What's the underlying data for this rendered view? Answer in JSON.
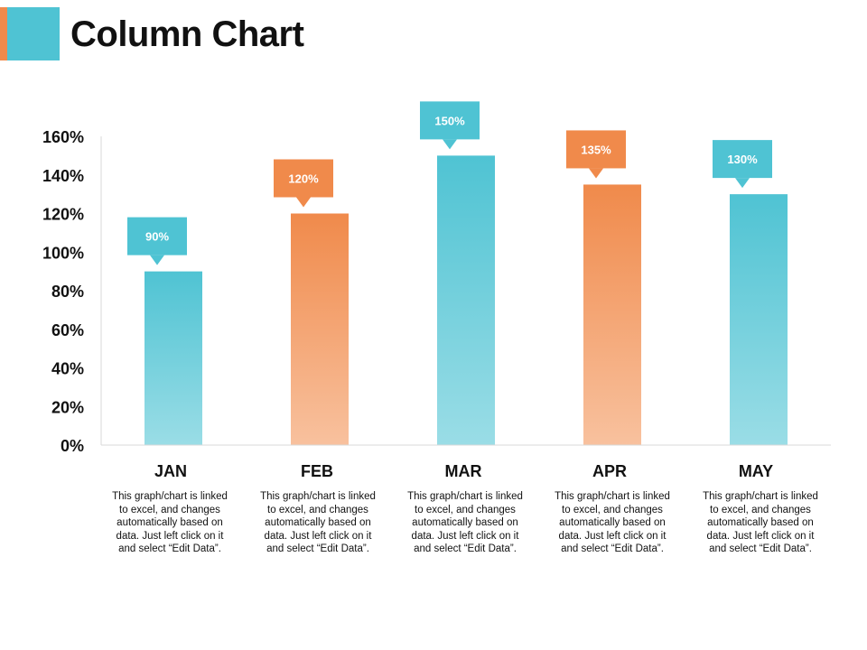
{
  "title": "Column Chart",
  "colors": {
    "teal": "#4fc3d3",
    "teal_light": "#9adde6",
    "orange": "#f08a4b",
    "orange_light": "#f8c19e",
    "axis": "#d9d9d9"
  },
  "chart_data": {
    "type": "bar",
    "categories": [
      "JAN",
      "FEB",
      "MAR",
      "APR",
      "MAY"
    ],
    "values": [
      90,
      120,
      150,
      135,
      130
    ],
    "data_labels": [
      "90%",
      "120%",
      "150%",
      "135%",
      "130%"
    ],
    "bar_colors": [
      "teal",
      "orange",
      "teal",
      "orange",
      "teal"
    ],
    "ylim": [
      0,
      160
    ],
    "yticks": [
      0,
      20,
      40,
      60,
      80,
      100,
      120,
      140,
      160
    ],
    "ytick_labels": [
      "0%",
      "20%",
      "40%",
      "60%",
      "80%",
      "100%",
      "120%",
      "140%",
      "160%"
    ],
    "grid": false,
    "legend": "none"
  },
  "descriptions": [
    "This graph/chart is linked to excel, and changes automatically based on data. Just left click on it and select “Edit Data”.",
    "This graph/chart is linked to excel, and changes automatically based on data. Just left click on it and select “Edit Data”.",
    "This graph/chart is linked to excel, and changes automatically based on data. Just left click on it and select “Edit Data”.",
    "This graph/chart is linked to excel, and changes automatically based on data. Just left click on it and select “Edit Data”.",
    "This graph/chart is linked to excel, and changes automatically based on data. Just left click on it and select “Edit Data”."
  ]
}
